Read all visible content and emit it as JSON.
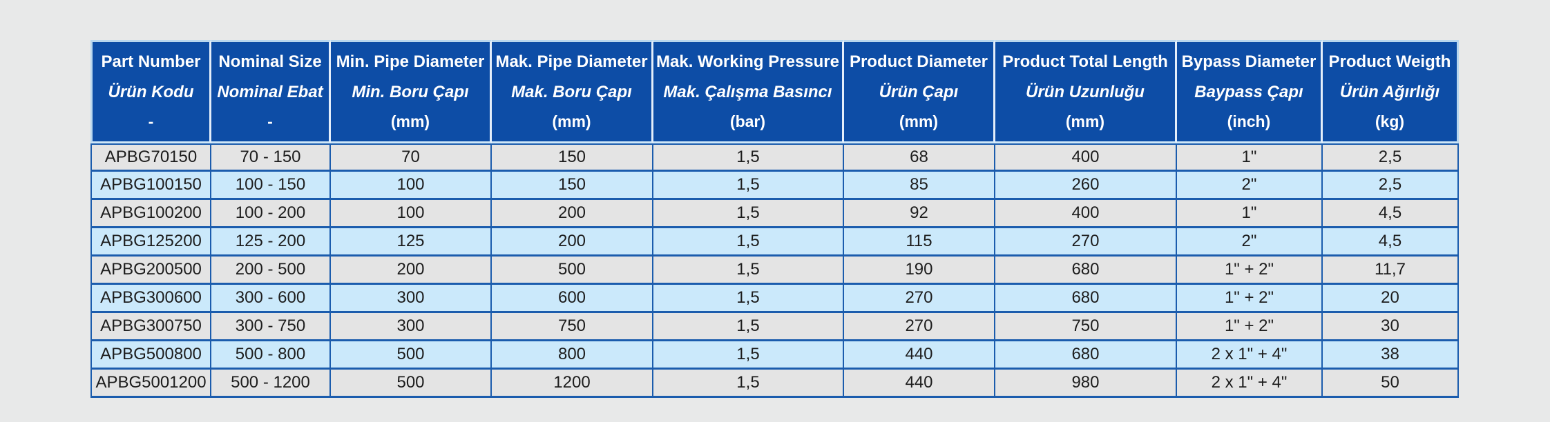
{
  "colors": {
    "page_background": "#e8e9e9",
    "header_background": "#0d4da6",
    "header_text": "#ffffff",
    "row_gray": "#e4e4e4",
    "row_light_blue": "#cbe9fb",
    "grid_border_blue": "#1b5cad",
    "header_outer_border": "#b9d7ee",
    "cell_text": "#1d1d1d"
  },
  "table": {
    "columns": [
      {
        "en": "Part Number",
        "tr": "Ürün Kodu",
        "unit": "-"
      },
      {
        "en": "Nominal Size",
        "tr": "Nominal Ebat",
        "unit": "-"
      },
      {
        "en": "Min. Pipe Diameter",
        "tr": "Min. Boru Çapı",
        "unit": "(mm)"
      },
      {
        "en": "Mak. Pipe Diameter",
        "tr": "Mak. Boru Çapı",
        "unit": "(mm)"
      },
      {
        "en": "Mak. Working Pressure",
        "tr": "Mak. Çalışma Basıncı",
        "unit": "(bar)"
      },
      {
        "en": "Product Diameter",
        "tr": "Ürün Çapı",
        "unit": "(mm)"
      },
      {
        "en": "Product Total Length",
        "tr": "Ürün Uzunluğu",
        "unit": "(mm)"
      },
      {
        "en": "Bypass Diameter",
        "tr": "Baypass Çapı",
        "unit": "(inch)"
      },
      {
        "en": "Product Weigth",
        "tr": "Ürün Ağırlığı",
        "unit": "(kg)"
      }
    ],
    "rows": [
      [
        "APBG70150",
        "70 - 150",
        "70",
        "150",
        "1,5",
        "68",
        "400",
        "1\"",
        "2,5"
      ],
      [
        "APBG100150",
        "100 - 150",
        "100",
        "150",
        "1,5",
        "85",
        "260",
        "2\"",
        "2,5"
      ],
      [
        "APBG100200",
        "100 - 200",
        "100",
        "200",
        "1,5",
        "92",
        "400",
        "1\"",
        "4,5"
      ],
      [
        "APBG125200",
        "125 - 200",
        "125",
        "200",
        "1,5",
        "115",
        "270",
        "2\"",
        "4,5"
      ],
      [
        "APBG200500",
        "200 - 500",
        "200",
        "500",
        "1,5",
        "190",
        "680",
        "1\" + 2\"",
        "11,7"
      ],
      [
        "APBG300600",
        "300 - 600",
        "300",
        "600",
        "1,5",
        "270",
        "680",
        "1\" + 2\"",
        "20"
      ],
      [
        "APBG300750",
        "300 - 750",
        "300",
        "750",
        "1,5",
        "270",
        "750",
        "1\" + 2\"",
        "30"
      ],
      [
        "APBG500800",
        "500 - 800",
        "500",
        "800",
        "1,5",
        "440",
        "680",
        "2 x 1\" + 4\"",
        "38"
      ],
      [
        "APBG5001200",
        "500 - 1200",
        "500",
        "1200",
        "1,5",
        "440",
        "980",
        "2 x 1\" + 4\"",
        "50"
      ]
    ]
  }
}
